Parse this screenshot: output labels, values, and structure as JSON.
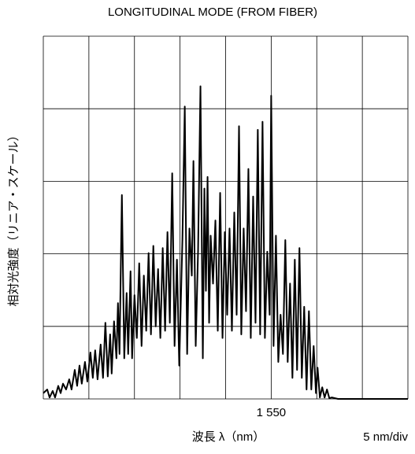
{
  "chart_data": {
    "type": "line",
    "title": "LONGITUDINAL MODE (FROM FIBER)",
    "x_label": "波長 λ（nm）",
    "y_label": "相対光強度（リニア・スケール）",
    "scale_note": "5 nm/div",
    "xlim": [
      1525,
      1565
    ],
    "ylim": [
      0,
      5
    ],
    "xticks": [
      {
        "value": 1550,
        "label": "1 550"
      }
    ],
    "xgrid": [
      1525,
      1530,
      1535,
      1540,
      1545,
      1550,
      1555,
      1560,
      1565
    ],
    "ygrid": [
      0,
      1,
      2,
      3,
      4,
      5
    ],
    "color": "#000000",
    "x": [
      1525.0,
      1525.43,
      1525.69,
      1526.03,
      1526.29,
      1526.64,
      1526.9,
      1527.16,
      1527.5,
      1527.84,
      1528.1,
      1528.45,
      1528.71,
      1528.97,
      1529.22,
      1529.57,
      1529.83,
      1530.17,
      1530.43,
      1530.69,
      1530.95,
      1531.29,
      1531.55,
      1531.81,
      1532.07,
      1532.33,
      1532.5,
      1532.76,
      1533.02,
      1533.19,
      1533.36,
      1533.62,
      1533.88,
      1534.14,
      1534.31,
      1534.57,
      1534.74,
      1535.0,
      1535.26,
      1535.52,
      1535.78,
      1536.03,
      1536.29,
      1536.55,
      1536.81,
      1537.07,
      1537.33,
      1537.59,
      1537.84,
      1538.1,
      1538.36,
      1538.62,
      1538.88,
      1539.14,
      1539.4,
      1539.66,
      1539.91,
      1540.26,
      1540.52,
      1540.78,
      1541.03,
      1541.29,
      1541.47,
      1541.72,
      1541.98,
      1542.24,
      1542.5,
      1542.67,
      1542.84,
      1543.02,
      1543.19,
      1543.36,
      1543.62,
      1543.88,
      1544.14,
      1544.4,
      1544.66,
      1544.91,
      1545.17,
      1545.43,
      1545.69,
      1545.95,
      1546.21,
      1546.47,
      1546.72,
      1546.98,
      1547.24,
      1547.5,
      1547.76,
      1548.02,
      1548.28,
      1548.53,
      1548.79,
      1549.05,
      1549.31,
      1549.57,
      1549.83,
      1550.0,
      1550.26,
      1550.52,
      1550.78,
      1551.03,
      1551.29,
      1551.55,
      1551.81,
      1552.07,
      1552.33,
      1552.59,
      1552.84,
      1553.1,
      1553.36,
      1553.62,
      1553.88,
      1554.14,
      1554.4,
      1554.66,
      1554.91,
      1555.09,
      1555.34,
      1555.6,
      1555.86,
      1556.12,
      1556.38,
      1556.64,
      1557.33,
      1565.0
    ],
    "values": [
      0.08,
      0.13,
      0.02,
      0.11,
      0.02,
      0.18,
      0.08,
      0.21,
      0.13,
      0.27,
      0.13,
      0.4,
      0.18,
      0.46,
      0.21,
      0.51,
      0.24,
      0.64,
      0.29,
      0.67,
      0.27,
      0.75,
      0.29,
      1.05,
      0.31,
      0.89,
      0.35,
      1.07,
      0.56,
      1.32,
      0.62,
      2.81,
      0.56,
      1.46,
      0.62,
      1.76,
      0.56,
      1.43,
      0.84,
      1.87,
      0.73,
      1.7,
      0.94,
      2.01,
      0.89,
      2.11,
      1.0,
      1.79,
      0.84,
      2.08,
      0.94,
      2.3,
      1.05,
      3.11,
      0.73,
      1.92,
      0.46,
      2.19,
      4.03,
      0.62,
      2.35,
      1.7,
      3.28,
      0.73,
      2.05,
      4.31,
      0.56,
      2.9,
      1.49,
      3.06,
      1.05,
      2.25,
      1.59,
      2.46,
      0.94,
      2.84,
      0.84,
      2.3,
      1.16,
      2.35,
      0.94,
      2.57,
      1.16,
      3.76,
      0.89,
      2.35,
      1.21,
      3.17,
      0.84,
      2.79,
      1.05,
      3.71,
      0.89,
      3.82,
      0.84,
      2.03,
      1.16,
      4.18,
      0.73,
      2.25,
      0.51,
      1.16,
      0.62,
      2.19,
      0.51,
      1.59,
      0.29,
      1.92,
      0.4,
      2.08,
      0.29,
      1.27,
      0.13,
      1.21,
      0.13,
      0.73,
      0.08,
      0.43,
      0.02,
      0.16,
      0.02,
      0.13,
      0.01,
      0.02,
      0,
      0
    ]
  }
}
